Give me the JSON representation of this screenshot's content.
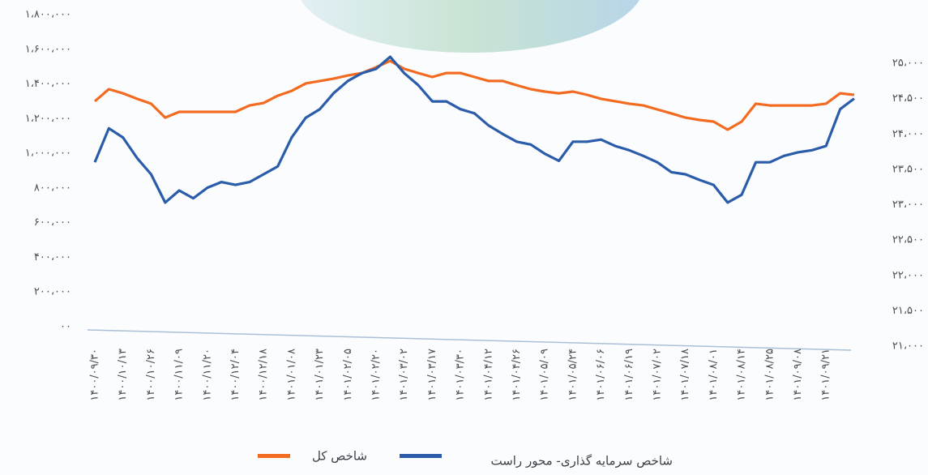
{
  "chart_data": {
    "type": "line",
    "categories": [
      "۱۴۰۰/۰۹/۳۰",
      null,
      "۱۴۰۰/۱۰/۱۳",
      null,
      "۱۴۰۰/۱۰/۲۶",
      null,
      "۱۴۰۰/۱۱/۰۹",
      null,
      "۱۴۰۰/۱۱/۲۰",
      null,
      "۱۴۰۰/۱۲/۰۴",
      null,
      "۱۴۰۰/۱۲/۱۸",
      null,
      "۱۴۰۱/۰۱/۰۸",
      null,
      "۱۴۰۱/۰۱/۲۳",
      null,
      "۱۴۰۱/۰۲/۰۵",
      null,
      "۱۴۰۱/۰۲/۲۰",
      null,
      "۱۴۰۱/۰۳/۰۲",
      null,
      "۱۴۰۱/۰۳/۱۷",
      null,
      "۱۴۰۱/۰۳/۳۰",
      null,
      "۱۴۰۱/۰۴/۱۲",
      null,
      "۱۴۰۱/۰۴/۲۶",
      null,
      "۱۴۰۱/۰۵/۰۹",
      null,
      "۱۴۰۱/۰۵/۲۴",
      null,
      "۱۴۰۱/۰۶/۰۶",
      null,
      "۱۴۰۱/۰۶/۱۹",
      null,
      "۱۴۰۱/۰۷/۰۲",
      null,
      "۱۴۰۱/۰۷/۱۸",
      null,
      "۱۴۰۱/۰۸/۰۱",
      null,
      "۱۴۰۱/۰۸/۱۴",
      null,
      "۱۴۰۱/۰۸/۲۵",
      null,
      "۱۴۰۱/۰۹/۰۸",
      null,
      "۱۴۰۱/۰۹/۲۱",
      null,
      null
    ],
    "series": [
      {
        "name": "شاخص کل",
        "color": "#f26b21",
        "values": [
          1300000,
          1370000,
          1346000,
          1314000,
          1286000,
          1206000,
          1239000,
          1239000,
          1239000,
          1239000,
          1239000,
          1276000,
          1290000,
          1332000,
          1360000,
          1403000,
          1417000,
          1431000,
          1449000,
          1463000,
          1496000,
          1533000,
          1487000,
          1463000,
          1440000,
          1463000,
          1463000,
          1440000,
          1417000,
          1417000,
          1393000,
          1370000,
          1356000,
          1346000,
          1356000,
          1337000,
          1314000,
          1300000,
          1286000,
          1276000,
          1253000,
          1230000,
          1206000,
          1192000,
          1183000,
          1136000,
          1183000,
          1286000,
          1276000,
          1276000,
          1276000,
          1276000,
          1286000,
          1346000,
          1337000
        ]
      },
      {
        "name": "شاخص سرمایه گذاری- محور راست",
        "color": "#2a5caa",
        "axis": "y2",
        "values": [
          23600,
          24080,
          23950,
          23660,
          23430,
          23030,
          23200,
          23090,
          23240,
          23320,
          23280,
          23320,
          23430,
          23540,
          23950,
          24230,
          24350,
          24580,
          24750,
          24860,
          24920,
          25090,
          24860,
          24690,
          24460,
          24460,
          24350,
          24290,
          24120,
          24000,
          23890,
          23850,
          23720,
          23620,
          23890,
          23890,
          23920,
          23830,
          23770,
          23690,
          23600,
          23460,
          23430,
          23350,
          23280,
          23030,
          23140,
          23600,
          23600,
          23690,
          23740,
          23770,
          23830,
          24350,
          24500
        ]
      }
    ],
    "ylim": [
      0,
      1800000
    ],
    "yticks": [
      {
        "value": 0,
        "label": "۰۰"
      },
      {
        "value": 200000,
        "label": "۲۰۰،۰۰۰"
      },
      {
        "value": 400000,
        "label": "۴۰۰،۰۰۰"
      },
      {
        "value": 600000,
        "label": "۶۰۰،۰۰۰"
      },
      {
        "value": 800000,
        "label": "۸۰۰،۰۰۰"
      },
      {
        "value": 1000000,
        "label": "۱،۰۰۰،۰۰۰"
      },
      {
        "value": 1200000,
        "label": "۱،۲۰۰،۰۰۰"
      },
      {
        "value": 1400000,
        "label": "۱،۴۰۰،۰۰۰"
      },
      {
        "value": 1600000,
        "label": "۱،۶۰۰،۰۰۰"
      },
      {
        "value": 1800000,
        "label": "۱،۸۰۰،۰۰۰"
      }
    ],
    "y2lim": [
      21000,
      25000
    ],
    "y2ticks": [
      {
        "value": 21000,
        "label": "۲۱،۰۰۰"
      },
      {
        "value": 21500,
        "label": "۲۱،۵۰۰"
      },
      {
        "value": 22000,
        "label": "۲۲،۰۰۰"
      },
      {
        "value": 22500,
        "label": "۲۲،۵۰۰"
      },
      {
        "value": 23000,
        "label": "۲۳،۰۰۰"
      },
      {
        "value": 23500,
        "label": "۲۳،۵۰۰"
      },
      {
        "value": 24000,
        "label": "۲۴،۰۰۰"
      },
      {
        "value": 24500,
        "label": "۲۴،۵۰۰"
      },
      {
        "value": 25000,
        "label": "۲۵،۰۰۰"
      }
    ],
    "grid": false
  }
}
